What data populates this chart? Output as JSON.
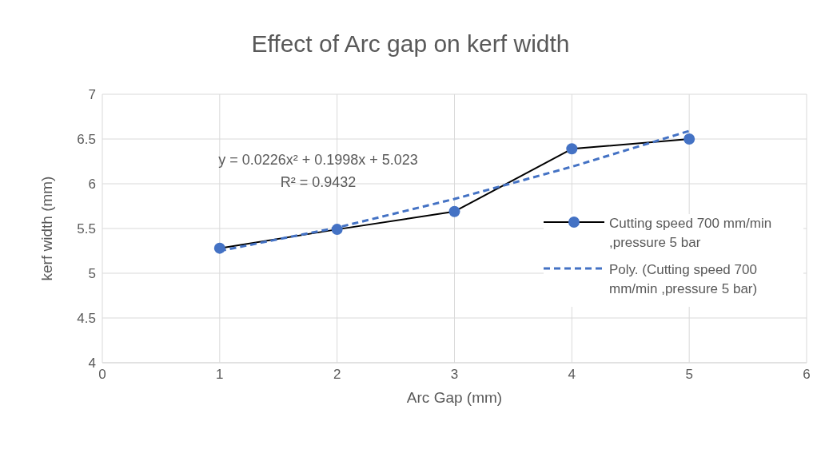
{
  "chart_data": {
    "type": "line",
    "title": "Effect of Arc gap on kerf width",
    "xlabel": "Arc Gap (mm)",
    "ylabel": "kerf width (mm)",
    "x": [
      1,
      2,
      3,
      4,
      5
    ],
    "series": [
      {
        "name": "Cutting speed 700 mm/min ,pressure 5 bar",
        "color": "#000000",
        "colors": [
          "#4472c4",
          "#4472c4",
          "#4472c4",
          "#4472c4",
          "#4472c4"
        ],
        "marker": "circle",
        "line_style": "solid",
        "values": [
          5.28,
          5.49,
          5.69,
          6.39,
          6.5
        ]
      },
      {
        "name": "Poly. (Cutting speed 700 mm/min ,pressure 5 bar)",
        "color": "#4472c4",
        "marker": "none",
        "line_style": "dashed",
        "values": [
          5.25,
          5.51,
          5.83,
          6.19,
          6.59
        ]
      }
    ],
    "annotations": [
      "y = 0.0226x² + 0.1998x + 5.023",
      "R² = 0.9432"
    ],
    "xlim": [
      0,
      6
    ],
    "xticks": [
      0,
      1,
      2,
      3,
      4,
      5,
      6
    ],
    "ylim": [
      4,
      7
    ],
    "yticks": [
      4,
      4.5,
      5,
      5.5,
      6,
      6.5,
      7
    ],
    "grid": true,
    "legend": "right"
  }
}
